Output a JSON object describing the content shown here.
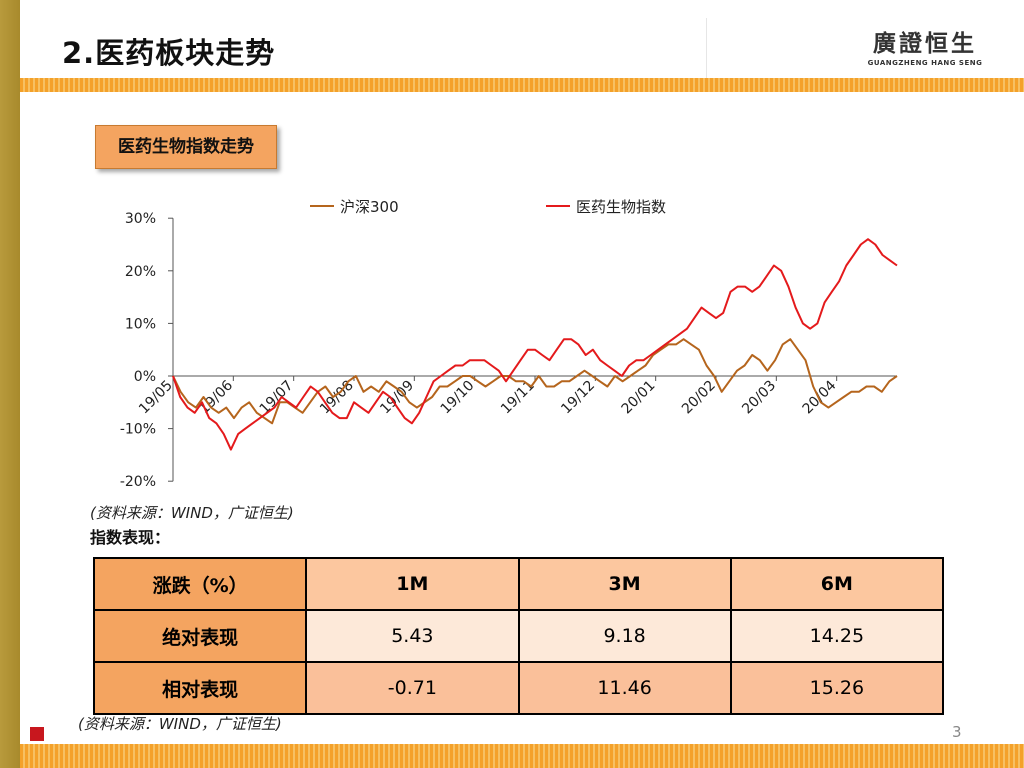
{
  "header": {
    "title": "2.医药板块走势",
    "logo_cn": "廣證恒生",
    "logo_en": "GUANGZHENG HANG SENG"
  },
  "section_label": "医药生物指数走势",
  "chart_source": "(资料来源：WIND，广证恒生)",
  "chart_data": {
    "type": "line",
    "title": "",
    "xlabel": "",
    "ylabel": "",
    "ylim": [
      -20,
      30
    ],
    "yticks": [
      "30%",
      "20%",
      "10%",
      "0%",
      "-10%",
      "-20%"
    ],
    "yvalues": [
      30,
      20,
      10,
      0,
      -10,
      -20
    ],
    "xticks": [
      "19/05",
      "19/06",
      "19/07",
      "19/08",
      "19/09",
      "19/10",
      "19/11",
      "19/12",
      "20/01",
      "20/02",
      "20/03",
      "20/04"
    ],
    "legend_position": "top",
    "grid": false,
    "series": [
      {
        "name": "沪深300",
        "color": "#b5651d",
        "values": [
          0,
          -3,
          -5,
          -6,
          -4,
          -6,
          -7,
          -6,
          -8,
          -6,
          -5,
          -7,
          -8,
          -9,
          -5,
          -5,
          -6,
          -7,
          -5,
          -3,
          -2,
          -4,
          -3,
          -1,
          0,
          -3,
          -2,
          -3,
          -1,
          -2,
          -3,
          -5,
          -6,
          -5,
          -4,
          -2,
          -2,
          -1,
          0,
          0,
          -1,
          -2,
          -1,
          0,
          0,
          -1,
          -1,
          -2,
          0,
          -2,
          -2,
          -1,
          -1,
          0,
          1,
          0,
          -1,
          -2,
          0,
          -1,
          0,
          1,
          2,
          4,
          5,
          6,
          6,
          7,
          6,
          5,
          2,
          0,
          -3,
          -1,
          1,
          2,
          4,
          3,
          1,
          3,
          6,
          7,
          5,
          3,
          -2,
          -5,
          -6,
          -5,
          -4,
          -3,
          -3,
          -2,
          -2,
          -3,
          -1,
          0
        ]
      },
      {
        "name": "医药生物指数",
        "color": "#e41a1c",
        "values": [
          0,
          -4,
          -6,
          -7,
          -5,
          -8,
          -9,
          -11,
          -14,
          -11,
          -10,
          -9,
          -8,
          -7,
          -6,
          -4,
          -5,
          -6,
          -4,
          -2,
          -3,
          -5,
          -7,
          -8,
          -8,
          -5,
          -6,
          -7,
          -5,
          -3,
          -4,
          -6,
          -8,
          -9,
          -7,
          -4,
          -1,
          0,
          1,
          2,
          2,
          3,
          3,
          3,
          2,
          1,
          -1,
          1,
          3,
          5,
          5,
          4,
          3,
          5,
          7,
          7,
          6,
          4,
          5,
          3,
          2,
          1,
          0,
          2,
          3,
          3,
          4,
          5,
          6,
          7,
          8,
          9,
          11,
          13,
          12,
          11,
          12,
          16,
          17,
          17,
          16,
          17,
          19,
          21,
          20,
          17,
          13,
          10,
          9,
          10,
          14,
          16,
          18,
          21,
          23,
          25,
          26,
          25,
          23,
          22,
          21
        ]
      }
    ]
  },
  "perf": {
    "title": "指数表现：",
    "header": [
      "涨跌（%）",
      "1M",
      "3M",
      "6M"
    ],
    "rows": [
      {
        "label": "绝对表现",
        "values": [
          "5.43",
          "9.18",
          "14.25"
        ]
      },
      {
        "label": "相对表现",
        "values": [
          "-0.71",
          "11.46",
          "15.26"
        ]
      }
    ]
  },
  "footer": {
    "source": "(资料来源：WIND，广证恒生)",
    "page_number": "3"
  }
}
